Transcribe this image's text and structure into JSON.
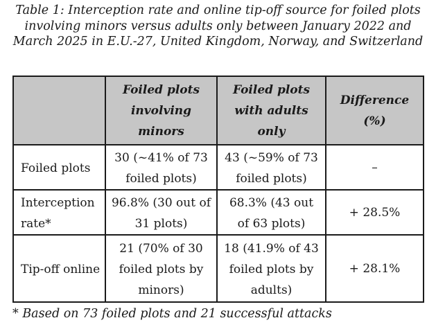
{
  "caption": "Table 1: Interception rate and online tip-off source for foiled plots involving minors versus adults only between January 2022 and March 2025 in E.U.-27, United Kingdom, Norway, and Switzerland",
  "table": {
    "headers": [
      "",
      "Foiled plots involving minors",
      "Foiled plots with adults only",
      "Difference (%)"
    ],
    "rows": [
      {
        "label": "Foiled plots",
        "minors": "30 (~41% of 73 foiled plots)",
        "adults": "43 (~59% of 73 foiled plots)",
        "difference": "–"
      },
      {
        "label": "Interception rate*",
        "minors": "96.8% (30 out of 31 plots)",
        "adults": "68.3% (43 out of 63 plots)",
        "difference": "+ 28.5%"
      },
      {
        "label": "Tip-off online",
        "minors": "21 (70% of 30 foiled plots by minors)",
        "adults": "18 (41.9% of 43 foiled plots by adults)",
        "difference": "+ 28.1%"
      }
    ]
  },
  "footnote": "* Based on 73 foiled plots and 21 successful attacks",
  "colors": {
    "header_background": "#c6c6c6",
    "border": "#1a1a1a"
  }
}
